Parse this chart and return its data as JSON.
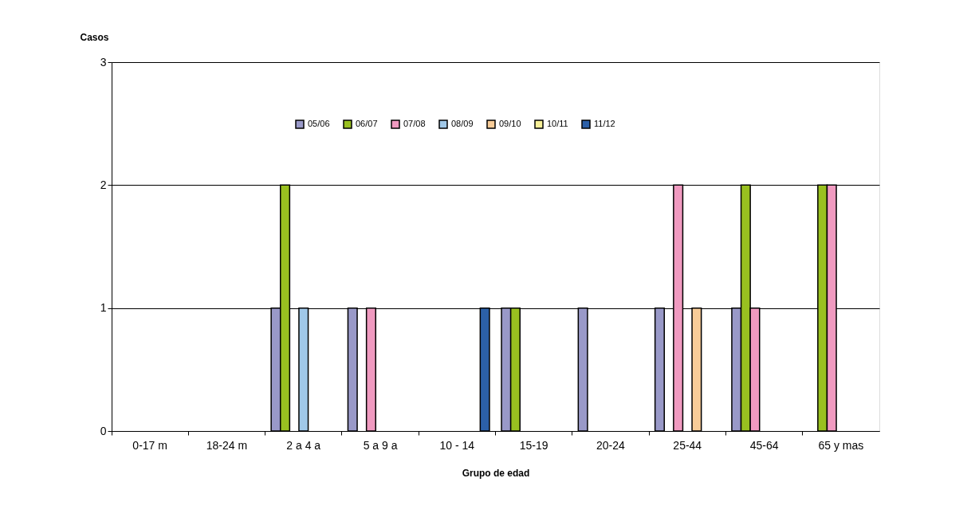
{
  "chart_data": {
    "type": "bar",
    "xlabel": "Grupo de edad",
    "ylabel": "Casos",
    "categories": [
      "0-17 m",
      "18-24 m",
      "2 a 4 a",
      "5 a 9 a",
      "10 - 14",
      "15-19",
      "20-24",
      "25-44",
      "45-64",
      "65 y mas"
    ],
    "series": [
      {
        "name": "05/06",
        "color": "#9999c8",
        "values": [
          0,
          0,
          1,
          1,
          0,
          1,
          1,
          1,
          1,
          0
        ]
      },
      {
        "name": "06/07",
        "color": "#99c020",
        "values": [
          0,
          0,
          2,
          0,
          0,
          1,
          0,
          0,
          2,
          2
        ]
      },
      {
        "name": "07/08",
        "color": "#f09ac0",
        "values": [
          0,
          0,
          0,
          1,
          0,
          0,
          0,
          2,
          1,
          2
        ]
      },
      {
        "name": "08/09",
        "color": "#a0c8e8",
        "values": [
          0,
          0,
          1,
          0,
          0,
          0,
          0,
          0,
          0,
          0
        ]
      },
      {
        "name": "09/10",
        "color": "#f8cc98",
        "values": [
          0,
          0,
          0,
          0,
          0,
          0,
          0,
          1,
          0,
          0
        ]
      },
      {
        "name": "10/11",
        "color": "#f8f098",
        "values": [
          0,
          0,
          0,
          0,
          0,
          0,
          0,
          0,
          0,
          0
        ]
      },
      {
        "name": "11/12",
        "color": "#2c60a8",
        "values": [
          0,
          0,
          0,
          0,
          1,
          0,
          0,
          0,
          0,
          0
        ]
      }
    ],
    "ylim": [
      0,
      3
    ],
    "yticks": [
      0,
      1,
      2,
      3
    ],
    "grid": "y",
    "legend": "top"
  }
}
